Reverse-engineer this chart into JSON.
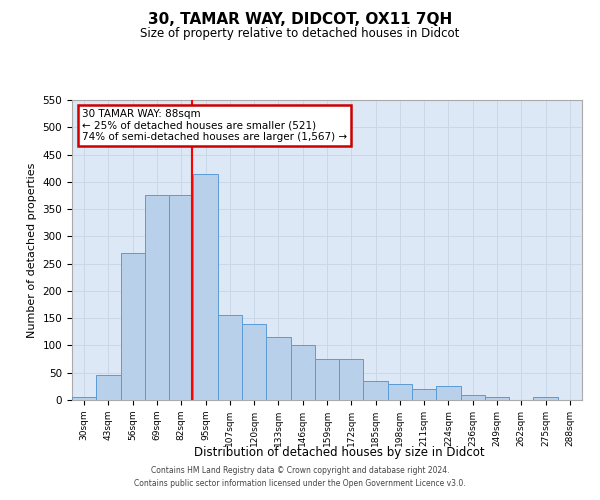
{
  "title": "30, TAMAR WAY, DIDCOT, OX11 7QH",
  "subtitle": "Size of property relative to detached houses in Didcot",
  "xlabel": "Distribution of detached houses by size in Didcot",
  "ylabel": "Number of detached properties",
  "categories": [
    "30sqm",
    "43sqm",
    "56sqm",
    "69sqm",
    "82sqm",
    "95sqm",
    "107sqm",
    "120sqm",
    "133sqm",
    "146sqm",
    "159sqm",
    "172sqm",
    "185sqm",
    "198sqm",
    "211sqm",
    "224sqm",
    "236sqm",
    "249sqm",
    "262sqm",
    "275sqm",
    "288sqm"
  ],
  "bar_values": [
    5,
    45,
    270,
    375,
    375,
    415,
    155,
    140,
    115,
    100,
    75,
    75,
    35,
    30,
    20,
    25,
    10,
    5,
    0,
    5,
    0
  ],
  "bar_color": "#b8d0ea",
  "bar_edge_color": "#5b9bd5",
  "red_line_index": 4.46,
  "annotation_title": "30 TAMAR WAY: 88sqm",
  "annotation_line1": "← 25% of detached houses are smaller (521)",
  "annotation_line2": "74% of semi-detached houses are larger (1,567) →",
  "annotation_box_color": "#ffffff",
  "annotation_box_edge_color": "#cc0000",
  "ylim": [
    0,
    550
  ],
  "yticks": [
    0,
    50,
    100,
    150,
    200,
    250,
    300,
    350,
    400,
    450,
    500,
    550
  ],
  "grid_color": "#c8d8e8",
  "background_color": "#dce8f5",
  "footer_line1": "Contains HM Land Registry data © Crown copyright and database right 2024.",
  "footer_line2": "Contains public sector information licensed under the Open Government Licence v3.0."
}
